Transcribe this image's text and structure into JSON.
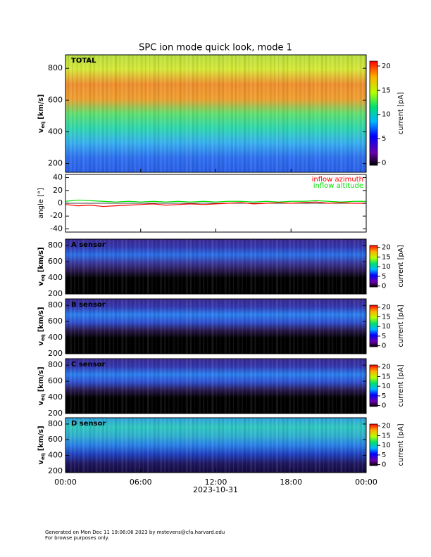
{
  "title": "SPC ion mode quick look, mode 1",
  "x_axis": {
    "xlim": [
      0,
      24
    ],
    "label": "2023-10-31",
    "xticks": [
      {
        "value": 0,
        "label": "00:00"
      },
      {
        "value": 6,
        "label": "06:00"
      },
      {
        "value": 12,
        "label": "12:00"
      },
      {
        "value": 18,
        "label": "18:00"
      },
      {
        "value": 24,
        "label": "00:00"
      }
    ]
  },
  "chart_data": [
    {
      "type": "heatmap",
      "label": "TOTAL",
      "ylabel": "v",
      "ylabel_sub": "eq",
      "ylabel_unit": "[km/s]",
      "ylim": [
        145,
        885
      ],
      "yticks": [
        200,
        400,
        600,
        800
      ],
      "background_colors": [
        "#b8e040",
        "#d8e838",
        "#f09030",
        "#f0a030",
        "#60e070",
        "#30d8b0",
        "#38b0f0",
        "#3070f0",
        "#2a60e8"
      ],
      "zlim": [
        -0.5,
        21
      ],
      "zticks": [
        0,
        5,
        10,
        15,
        20
      ],
      "zlabel": "current [pA]"
    },
    {
      "type": "line",
      "ylabel": "angle [°]",
      "ylim": [
        -45,
        45
      ],
      "yticks": [
        -40,
        -20,
        0,
        20,
        40
      ],
      "x": [
        0,
        1,
        2,
        3,
        4,
        5,
        6,
        7,
        8,
        9,
        10,
        11,
        12,
        13,
        14,
        15,
        16,
        17,
        18,
        19,
        20,
        21,
        22,
        23,
        24
      ],
      "series": [
        {
          "name": "inflow azimuth",
          "color": "#ff0000",
          "values": [
            -2,
            -4,
            -3,
            -5,
            -4,
            -3,
            -2,
            -1,
            -3,
            -2,
            -1,
            -2,
            -1,
            0,
            1,
            -1,
            0,
            1,
            0,
            1,
            2,
            0,
            1,
            0,
            0
          ]
        },
        {
          "name": "inflow altitude",
          "color": "#00e000",
          "values": [
            3,
            5,
            4,
            3,
            2,
            3,
            2,
            3,
            2,
            3,
            2,
            3,
            2,
            3,
            3,
            2,
            3,
            2,
            3,
            3,
            4,
            3,
            2,
            3,
            3
          ]
        }
      ]
    },
    {
      "type": "heatmap",
      "label": "A sensor",
      "ylabel": "v",
      "ylabel_sub": "eq",
      "ylabel_unit": "[km/s]",
      "ylim": [
        200,
        880
      ],
      "yticks": [
        200,
        400,
        600,
        800
      ],
      "background_colors": [
        "#3a2a90",
        "#3438b0",
        "#2a70e8",
        "#3a3aa0",
        "#2a1a50",
        "#000000",
        "#000000",
        "#000000"
      ],
      "zlim": [
        -0.5,
        21
      ],
      "zticks": [
        0,
        5,
        10,
        15,
        20
      ],
      "zlabel": "current [pA]"
    },
    {
      "type": "heatmap",
      "label": "B sensor",
      "ylabel": "v",
      "ylabel_sub": "eq",
      "ylabel_unit": "[km/s]",
      "ylim": [
        200,
        880
      ],
      "yticks": [
        200,
        400,
        600,
        800
      ],
      "background_colors": [
        "#3a2a90",
        "#3438b0",
        "#2a80f0",
        "#3050d0",
        "#2a1a50",
        "#000000",
        "#000000",
        "#000000"
      ],
      "zlim": [
        -0.5,
        21
      ],
      "zticks": [
        0,
        5,
        10,
        15,
        20
      ],
      "zlabel": "current [pA]"
    },
    {
      "type": "heatmap",
      "label": "C sensor",
      "ylabel": "v",
      "ylabel_sub": "eq",
      "ylabel_unit": "[km/s]",
      "ylim": [
        200,
        880
      ],
      "yticks": [
        200,
        400,
        600,
        800
      ],
      "background_colors": [
        "#3a2a90",
        "#3438b0",
        "#2a80f0",
        "#3050d0",
        "#2a1a50",
        "#000000",
        "#000000",
        "#000000"
      ],
      "zlim": [
        -0.5,
        21
      ],
      "zticks": [
        0,
        5,
        10,
        15,
        20
      ],
      "zlabel": "current [pA]"
    },
    {
      "type": "heatmap",
      "label": "D sensor",
      "ylabel": "v",
      "ylabel_sub": "eq",
      "ylabel_unit": "[km/s]",
      "ylim": [
        180,
        880
      ],
      "yticks": [
        200,
        400,
        600,
        800
      ],
      "background_colors": [
        "#30a0e0",
        "#30c8c0",
        "#30b0d0",
        "#2a80e8",
        "#2040c0",
        "#201860",
        "#140a40"
      ],
      "zlim": [
        -0.5,
        21
      ],
      "zticks": [
        0,
        5,
        10,
        15,
        20
      ],
      "zlabel": "current [pA]"
    }
  ],
  "footer": [
    "Generated on Mon Dec 11 19:06:06 2023 by mstevens@cfa.harvard.edu",
    "For browse purposes only."
  ]
}
